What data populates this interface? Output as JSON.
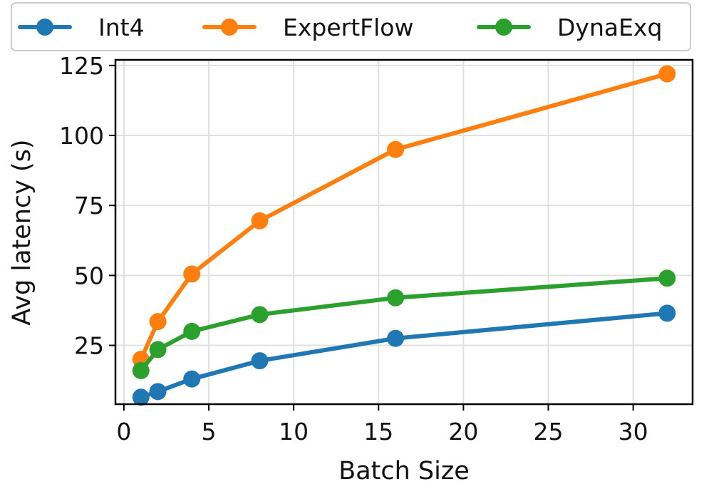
{
  "chart_data": {
    "type": "line",
    "title": "",
    "xlabel": "Batch Size",
    "ylabel": "Avg latency (s)",
    "xlim": [
      -0.5,
      33.5
    ],
    "ylim": [
      4,
      127
    ],
    "x": [
      1,
      2,
      4,
      8,
      16,
      32
    ],
    "xticks": [
      0,
      5,
      10,
      15,
      20,
      25,
      30
    ],
    "yticks": [
      25,
      50,
      75,
      100,
      125
    ],
    "grid": true,
    "legend_position": "top",
    "series": [
      {
        "name": "Int4",
        "color": "#1f77b4",
        "values": [
          6.5,
          8.5,
          13,
          19.5,
          27.5,
          36.5
        ]
      },
      {
        "name": "ExpertFlow",
        "color": "#ff7f0e",
        "values": [
          20,
          33.5,
          50.5,
          69.5,
          95,
          122
        ]
      },
      {
        "name": "DynaExq",
        "color": "#2ca02c",
        "values": [
          16,
          23.5,
          30,
          36,
          42,
          49
        ]
      }
    ]
  }
}
